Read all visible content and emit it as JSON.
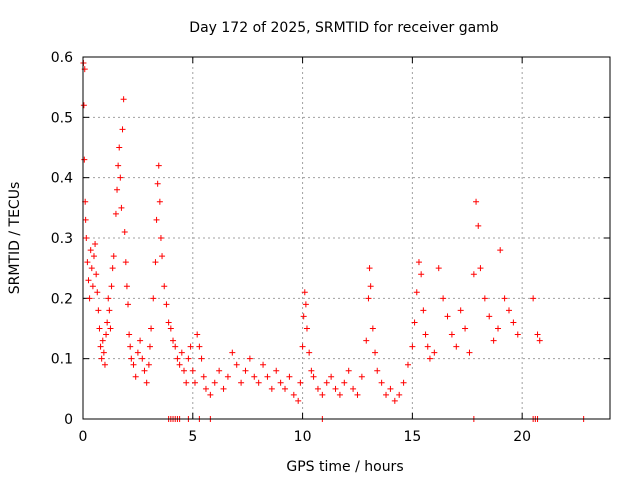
{
  "chart_data": {
    "type": "scatter",
    "title": "Day 172 of 2025, SRMTID for receiver gamb",
    "xlabel": "GPS time / hours",
    "ylabel": "SRMTID / TECUs",
    "xlim": [
      0,
      24
    ],
    "ylim": [
      0,
      0.6
    ],
    "xticks": [
      "0",
      "5",
      "10",
      "15",
      "20"
    ],
    "yticks": [
      "0",
      "0.1",
      "0.2",
      "0.3",
      "0.4",
      "0.5",
      "0.6"
    ],
    "grid": true,
    "marker": "plus",
    "color": "#ff0000",
    "series": [
      {
        "name": "SRMTID",
        "points": [
          [
            0.02,
            0.59
          ],
          [
            0.04,
            0.52
          ],
          [
            0.06,
            0.43
          ],
          [
            0.08,
            0.58
          ],
          [
            0.1,
            0.36
          ],
          [
            0.12,
            0.33
          ],
          [
            0.15,
            0.3
          ],
          [
            0.2,
            0.26
          ],
          [
            0.25,
            0.23
          ],
          [
            0.3,
            0.2
          ],
          [
            0.35,
            0.28
          ],
          [
            0.4,
            0.25
          ],
          [
            0.45,
            0.22
          ],
          [
            0.5,
            0.27
          ],
          [
            0.55,
            0.29
          ],
          [
            0.6,
            0.24
          ],
          [
            0.65,
            0.21
          ],
          [
            0.7,
            0.18
          ],
          [
            0.75,
            0.15
          ],
          [
            0.8,
            0.12
          ],
          [
            0.85,
            0.1
          ],
          [
            0.9,
            0.13
          ],
          [
            0.95,
            0.11
          ],
          [
            1.0,
            0.09
          ],
          [
            1.05,
            0.14
          ],
          [
            1.1,
            0.16
          ],
          [
            1.15,
            0.2
          ],
          [
            1.2,
            0.18
          ],
          [
            1.25,
            0.15
          ],
          [
            1.3,
            0.22
          ],
          [
            1.35,
            0.25
          ],
          [
            1.4,
            0.27
          ],
          [
            1.5,
            0.34
          ],
          [
            1.55,
            0.38
          ],
          [
            1.6,
            0.42
          ],
          [
            1.65,
            0.45
          ],
          [
            1.7,
            0.4
          ],
          [
            1.75,
            0.35
          ],
          [
            1.8,
            0.48
          ],
          [
            1.85,
            0.53
          ],
          [
            1.9,
            0.31
          ],
          [
            1.95,
            0.26
          ],
          [
            2.0,
            0.22
          ],
          [
            2.05,
            0.19
          ],
          [
            2.1,
            0.14
          ],
          [
            2.15,
            0.12
          ],
          [
            2.2,
            0.1
          ],
          [
            2.3,
            0.09
          ],
          [
            2.4,
            0.07
          ],
          [
            2.5,
            0.11
          ],
          [
            2.6,
            0.13
          ],
          [
            2.7,
            0.1
          ],
          [
            2.8,
            0.08
          ],
          [
            2.9,
            0.06
          ],
          [
            3.0,
            0.09
          ],
          [
            3.05,
            0.12
          ],
          [
            3.1,
            0.15
          ],
          [
            3.2,
            0.2
          ],
          [
            3.3,
            0.26
          ],
          [
            3.35,
            0.33
          ],
          [
            3.4,
            0.39
          ],
          [
            3.45,
            0.42
          ],
          [
            3.5,
            0.36
          ],
          [
            3.55,
            0.3
          ],
          [
            3.6,
            0.27
          ],
          [
            3.7,
            0.22
          ],
          [
            3.8,
            0.19
          ],
          [
            3.9,
            0.16
          ],
          [
            4.0,
            0.15
          ],
          [
            4.1,
            0.13
          ],
          [
            4.2,
            0.12
          ],
          [
            4.3,
            0.1
          ],
          [
            4.4,
            0.09
          ],
          [
            4.5,
            0.11
          ],
          [
            4.6,
            0.08
          ],
          [
            4.7,
            0.06
          ],
          [
            4.8,
            0.1
          ],
          [
            4.9,
            0.12
          ],
          [
            5.0,
            0.08
          ],
          [
            5.1,
            0.06
          ],
          [
            5.2,
            0.14
          ],
          [
            5.3,
            0.12
          ],
          [
            5.4,
            0.1
          ],
          [
            5.5,
            0.07
          ],
          [
            5.6,
            0.05
          ],
          [
            5.8,
            0.04
          ],
          [
            6.0,
            0.06
          ],
          [
            6.2,
            0.08
          ],
          [
            6.4,
            0.05
          ],
          [
            6.6,
            0.07
          ],
          [
            6.8,
            0.11
          ],
          [
            7.0,
            0.09
          ],
          [
            7.2,
            0.06
          ],
          [
            7.4,
            0.08
          ],
          [
            7.6,
            0.1
          ],
          [
            7.8,
            0.07
          ],
          [
            8.0,
            0.06
          ],
          [
            8.2,
            0.09
          ],
          [
            8.4,
            0.07
          ],
          [
            8.6,
            0.05
          ],
          [
            8.8,
            0.08
          ],
          [
            9.0,
            0.06
          ],
          [
            9.2,
            0.05
          ],
          [
            9.4,
            0.07
          ],
          [
            9.6,
            0.04
          ],
          [
            9.8,
            0.03
          ],
          [
            9.9,
            0.06
          ],
          [
            10.0,
            0.12
          ],
          [
            10.05,
            0.17
          ],
          [
            10.1,
            0.21
          ],
          [
            10.15,
            0.19
          ],
          [
            10.2,
            0.15
          ],
          [
            10.3,
            0.11
          ],
          [
            10.4,
            0.08
          ],
          [
            10.5,
            0.07
          ],
          [
            10.7,
            0.05
          ],
          [
            10.9,
            0.04
          ],
          [
            11.1,
            0.06
          ],
          [
            11.3,
            0.07
          ],
          [
            11.5,
            0.05
          ],
          [
            11.7,
            0.04
          ],
          [
            11.9,
            0.06
          ],
          [
            12.1,
            0.08
          ],
          [
            12.3,
            0.05
          ],
          [
            12.5,
            0.04
          ],
          [
            12.7,
            0.07
          ],
          [
            12.9,
            0.13
          ],
          [
            13.0,
            0.2
          ],
          [
            13.05,
            0.25
          ],
          [
            13.1,
            0.22
          ],
          [
            13.2,
            0.15
          ],
          [
            13.3,
            0.11
          ],
          [
            13.4,
            0.08
          ],
          [
            13.6,
            0.06
          ],
          [
            13.8,
            0.04
          ],
          [
            14.0,
            0.05
          ],
          [
            14.2,
            0.03
          ],
          [
            14.4,
            0.04
          ],
          [
            14.6,
            0.06
          ],
          [
            14.8,
            0.09
          ],
          [
            15.0,
            0.12
          ],
          [
            15.1,
            0.16
          ],
          [
            15.2,
            0.21
          ],
          [
            15.3,
            0.26
          ],
          [
            15.4,
            0.24
          ],
          [
            15.5,
            0.18
          ],
          [
            15.6,
            0.14
          ],
          [
            15.7,
            0.12
          ],
          [
            15.8,
            0.1
          ],
          [
            16.0,
            0.11
          ],
          [
            16.2,
            0.25
          ],
          [
            16.4,
            0.2
          ],
          [
            16.6,
            0.17
          ],
          [
            16.8,
            0.14
          ],
          [
            17.0,
            0.12
          ],
          [
            17.2,
            0.18
          ],
          [
            17.4,
            0.15
          ],
          [
            17.6,
            0.11
          ],
          [
            17.8,
            0.24
          ],
          [
            17.9,
            0.36
          ],
          [
            18.0,
            0.32
          ],
          [
            18.1,
            0.25
          ],
          [
            18.3,
            0.2
          ],
          [
            18.5,
            0.17
          ],
          [
            18.7,
            0.13
          ],
          [
            18.9,
            0.15
          ],
          [
            19.0,
            0.28
          ],
          [
            19.2,
            0.2
          ],
          [
            19.4,
            0.18
          ],
          [
            19.6,
            0.16
          ],
          [
            19.8,
            0.14
          ],
          [
            20.5,
            0.2
          ],
          [
            20.7,
            0.14
          ],
          [
            20.8,
            0.13
          ]
        ]
      }
    ],
    "zero_markers_hours": [
      3.9,
      4.0,
      4.1,
      4.2,
      4.3,
      4.4,
      4.8,
      5.3,
      5.8,
      10.9,
      17.8,
      20.5,
      20.6,
      20.7,
      22.8
    ]
  }
}
